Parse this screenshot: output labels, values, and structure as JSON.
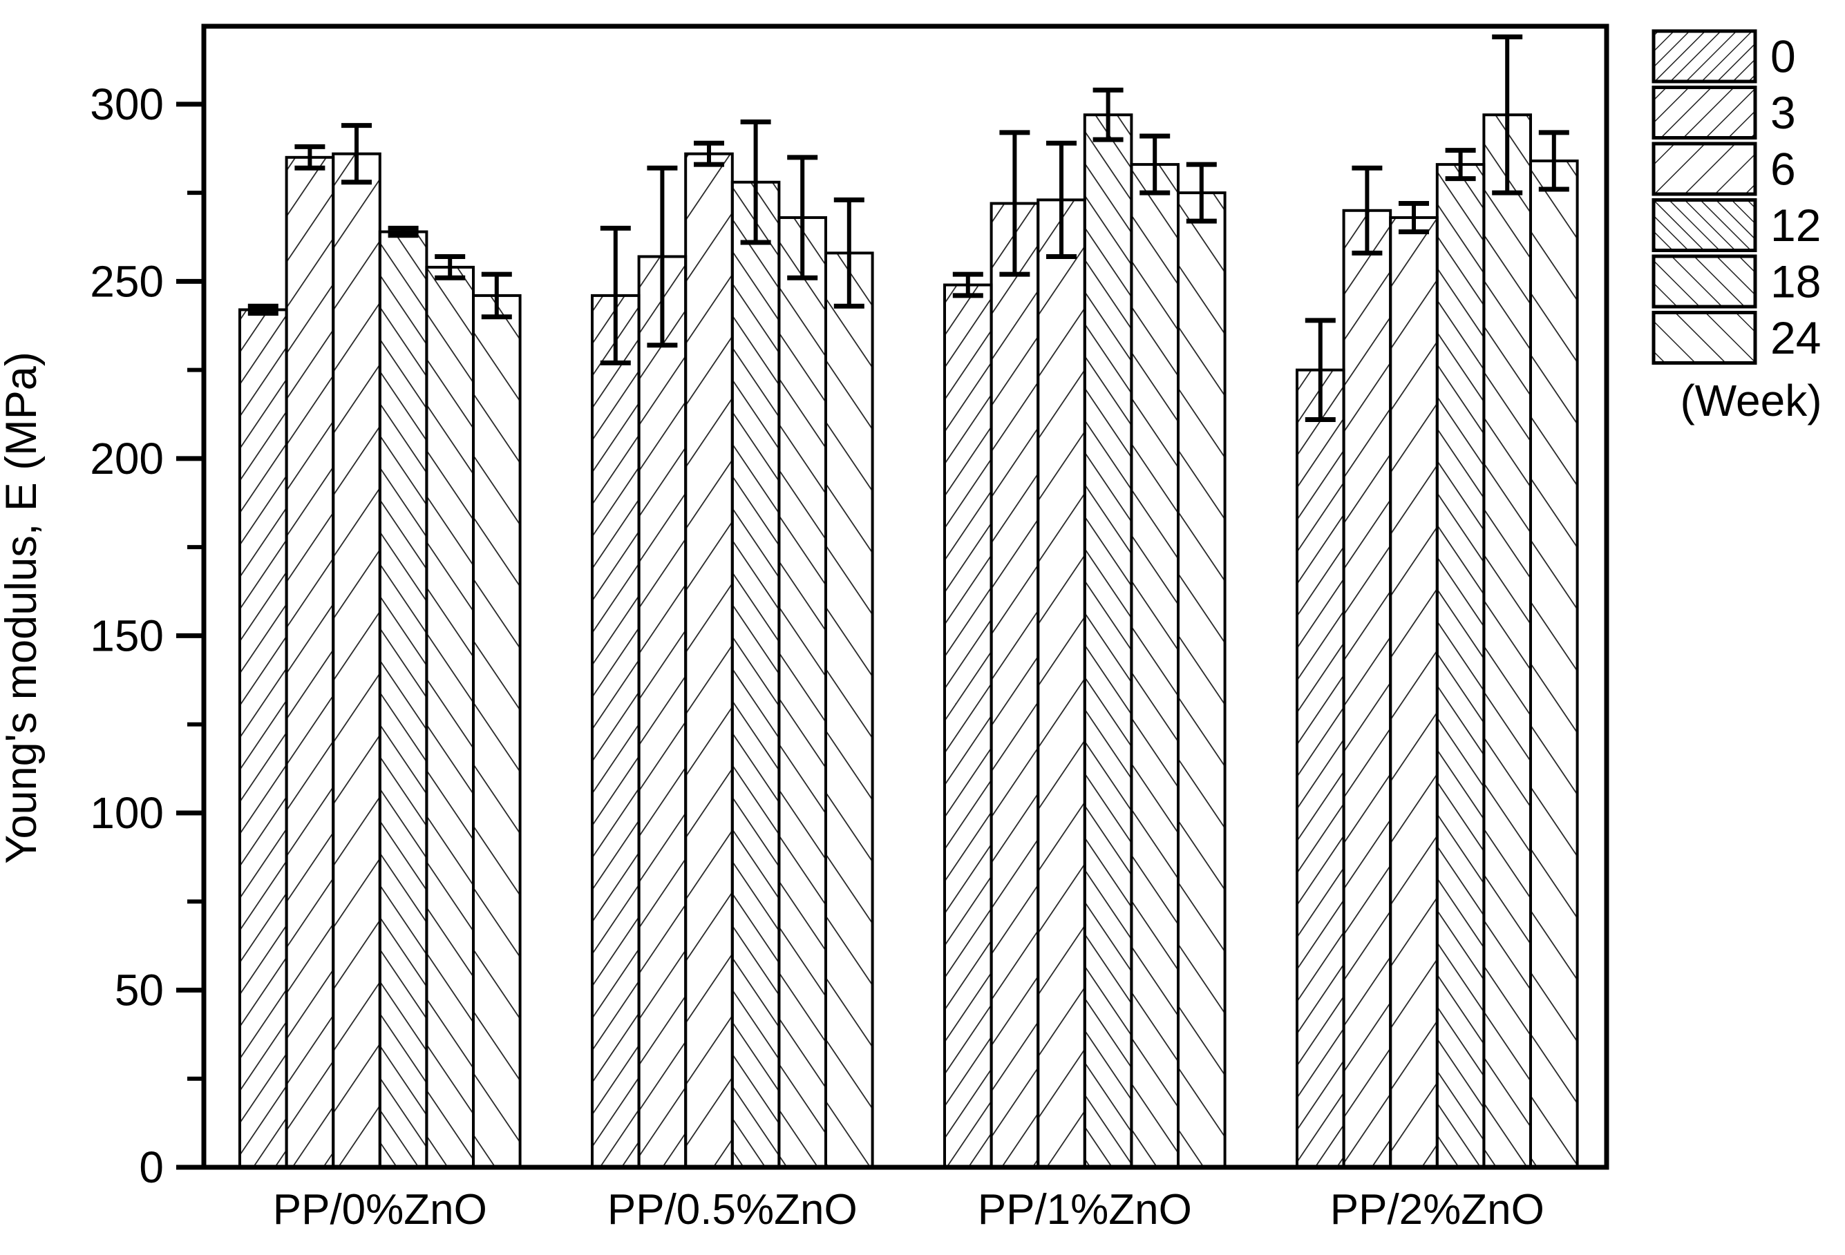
{
  "chart_data": {
    "type": "bar",
    "title": "",
    "ylabel": "Young's modulus, E (MPa)",
    "xlabel": "",
    "legend_title": "(Week)",
    "legend_position": "top-right-outside",
    "grid": false,
    "background_color": "#ffffff",
    "ink_color": "#000000",
    "y_axis": {
      "min": 0,
      "max": 322,
      "major_ticks": [
        0,
        50,
        100,
        150,
        200,
        250,
        300
      ],
      "minor_ticks": [
        25,
        75,
        125,
        175,
        225,
        275
      ],
      "unit": "MPa"
    },
    "categories": [
      "PP/0%ZnO",
      "PP/0.5%ZnO",
      "PP/1%ZnO",
      "PP/2%ZnO"
    ],
    "series": [
      {
        "name": "0",
        "hatch": "fwd-dense",
        "values": [
          242,
          246,
          249,
          225
        ],
        "errors": [
          1,
          19,
          3,
          14
        ]
      },
      {
        "name": "3",
        "hatch": "fwd-med",
        "values": [
          285,
          257,
          272,
          270
        ],
        "errors": [
          3,
          25,
          20,
          12
        ]
      },
      {
        "name": "6",
        "hatch": "fwd-wide",
        "values": [
          286,
          286,
          273,
          268
        ],
        "errors": [
          8,
          3,
          16,
          4
        ]
      },
      {
        "name": "12",
        "hatch": "back-dense",
        "values": [
          264,
          278,
          297,
          283
        ],
        "errors": [
          1,
          17,
          7,
          4
        ]
      },
      {
        "name": "18",
        "hatch": "back-med",
        "values": [
          254,
          268,
          283,
          297
        ],
        "errors": [
          3,
          17,
          8,
          22
        ]
      },
      {
        "name": "24",
        "hatch": "back-wide",
        "values": [
          246,
          258,
          275,
          284
        ],
        "errors": [
          6,
          15,
          8,
          8
        ]
      }
    ]
  }
}
